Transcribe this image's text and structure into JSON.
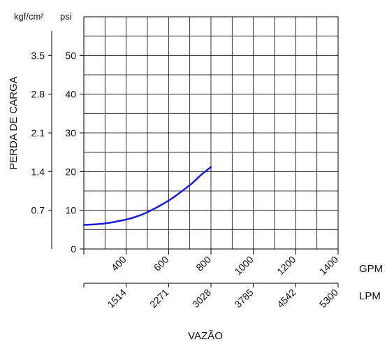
{
  "chart_data": {
    "type": "line",
    "title": "",
    "xlabel": "VAZÃO",
    "ylabel": "PERDA DE CARGA",
    "y_units": {
      "primary": "psi",
      "secondary": "kgf/cm²"
    },
    "x_units": {
      "primary": "GPM",
      "secondary": "LPM"
    },
    "ylim": [
      0,
      60
    ],
    "xlim": [
      200,
      1400
    ],
    "grid": true,
    "y_ticks": {
      "psi": [
        {
          "value": 0,
          "label": "0"
        },
        {
          "value": 10,
          "label": "10"
        },
        {
          "value": 20,
          "label": "20"
        },
        {
          "value": 30,
          "label": "30"
        },
        {
          "value": 40,
          "label": "40"
        },
        {
          "value": 50,
          "label": "50"
        }
      ],
      "kgf_cm2": [
        {
          "value": 10,
          "label": "0.7"
        },
        {
          "value": 20,
          "label": "1.4"
        },
        {
          "value": 30,
          "label": "2.1"
        },
        {
          "value": 40,
          "label": "2.8"
        },
        {
          "value": 50,
          "label": "3.5"
        }
      ]
    },
    "x_ticks": {
      "gpm": [
        {
          "value": 400,
          "label": "400"
        },
        {
          "value": 600,
          "label": "600"
        },
        {
          "value": 800,
          "label": "800"
        },
        {
          "value": 1000,
          "label": "1000"
        },
        {
          "value": 1200,
          "label": "1200"
        },
        {
          "value": 1400,
          "label": "1400"
        }
      ],
      "lpm": [
        {
          "value": 400,
          "label": "1514"
        },
        {
          "value": 600,
          "label": "2271"
        },
        {
          "value": 800,
          "label": "3028"
        },
        {
          "value": 1000,
          "label": "3785"
        },
        {
          "value": 1200,
          "label": "4542"
        },
        {
          "value": 1400,
          "label": "5300"
        }
      ]
    },
    "series": [
      {
        "color": "#1a1adc",
        "x": [
          200,
          300,
          400,
          450,
          500,
          600,
          700,
          750,
          800
        ],
        "y": [
          6.2,
          6.6,
          7.6,
          8.4,
          9.5,
          12.5,
          16.5,
          19,
          21.2
        ]
      }
    ]
  }
}
